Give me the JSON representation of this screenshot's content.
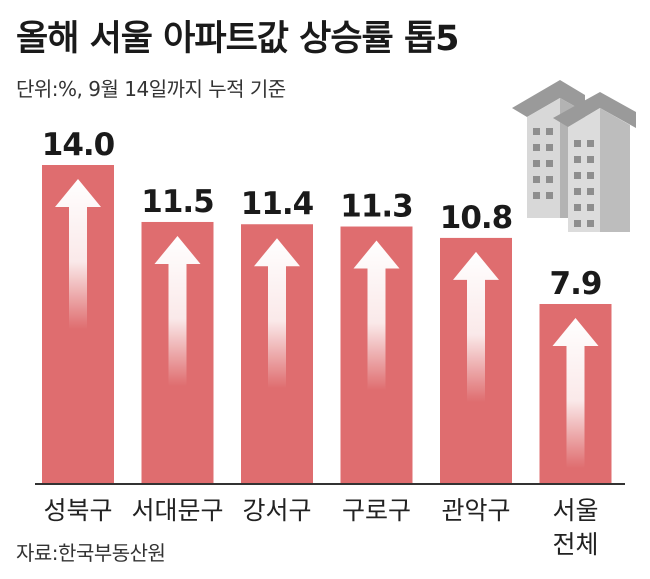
{
  "header": {
    "title": "올해 서울 아파트값 상승률 톱5",
    "subtitle": "단위:%, 9월 14일까지 누적 기준"
  },
  "footer": {
    "source": "자료:한국부동산원"
  },
  "colors": {
    "bar": "#df6d6f",
    "baseline": "#333333"
  },
  "chart_data": {
    "type": "bar",
    "categories": [
      "성북구",
      "서대문구",
      "강서구",
      "구로구",
      "관악구",
      "서울\n전체"
    ],
    "values": [
      14.0,
      11.5,
      11.4,
      11.3,
      10.8,
      7.9
    ],
    "value_labels": [
      "14.0",
      "11.5",
      "11.4",
      "11.3",
      "10.8",
      "7.9"
    ],
    "ylim": [
      0,
      14.0
    ],
    "grid": false,
    "legend": "none",
    "decorations": [
      "up-arrow-icon",
      "apartment-buildings-icon"
    ]
  }
}
